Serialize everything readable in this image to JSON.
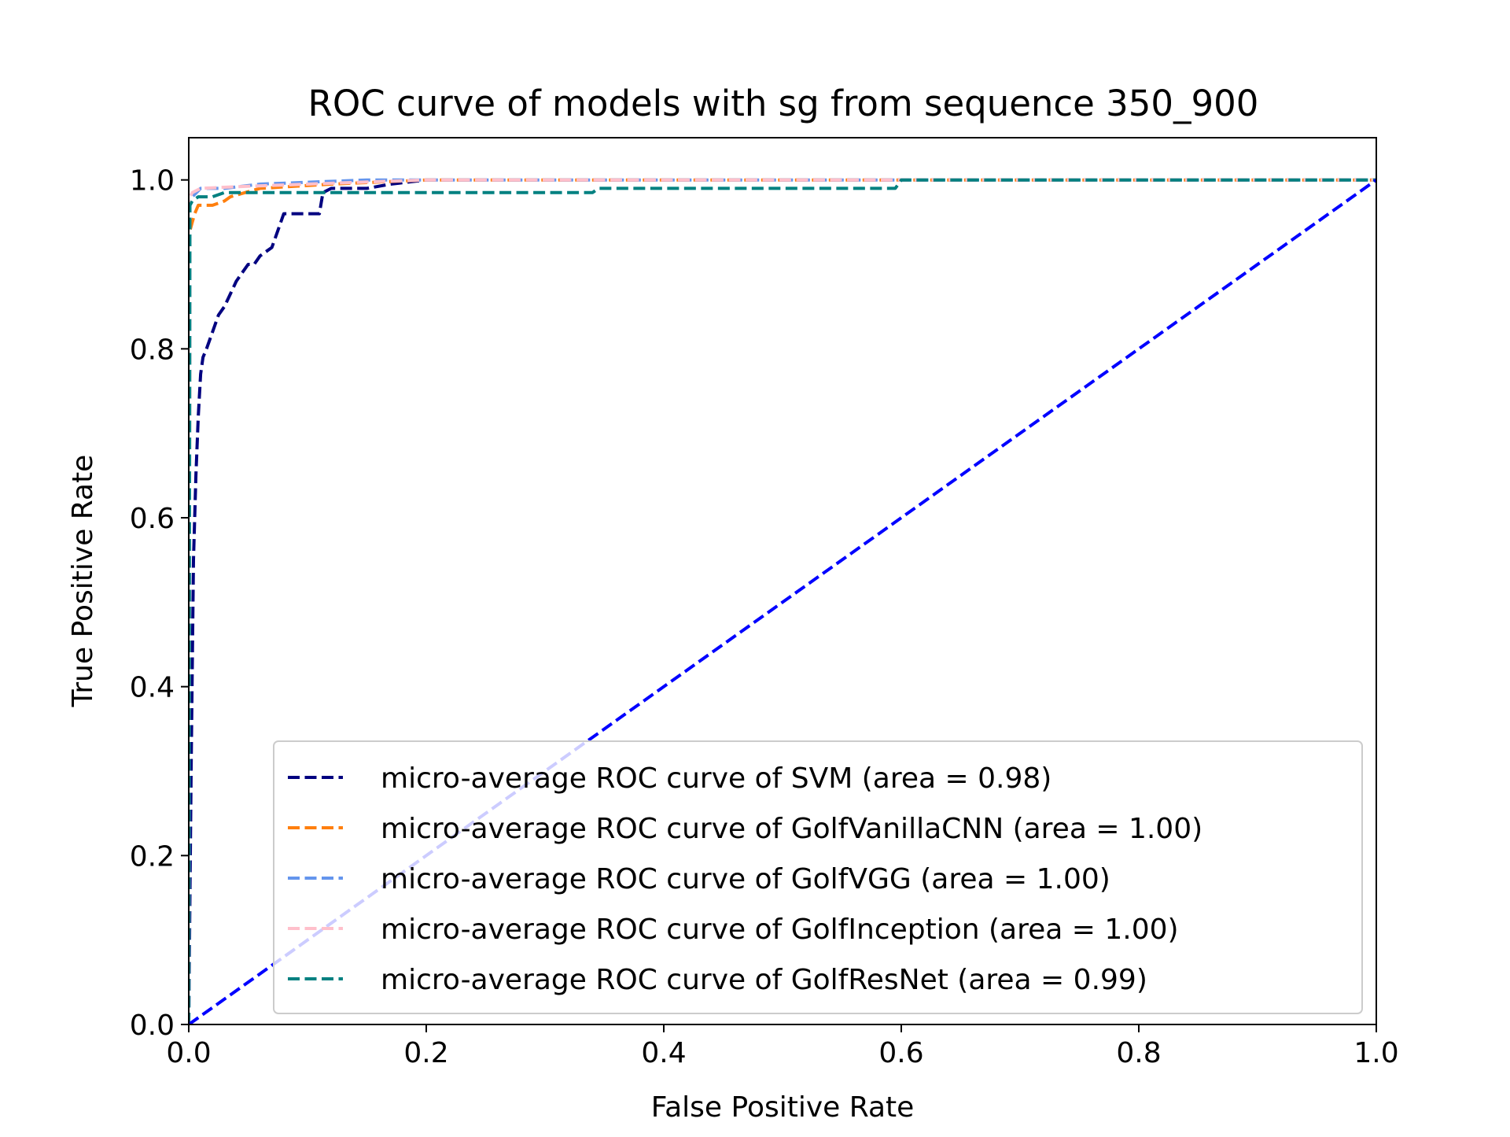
{
  "chart_data": {
    "type": "line",
    "title": "ROC curve of models with sg from sequence 350_900",
    "xlabel": "False Positive Rate",
    "ylabel": "True Positive Rate",
    "xlim": [
      0.0,
      1.0
    ],
    "ylim": [
      0.0,
      1.05
    ],
    "xticks": [
      "0.0",
      "0.2",
      "0.4",
      "0.6",
      "0.8",
      "1.0"
    ],
    "yticks": [
      "0.0",
      "0.2",
      "0.4",
      "0.6",
      "0.8",
      "1.0"
    ],
    "grid": false,
    "legend_position": "lower-right",
    "series": [
      {
        "name": "micro-average ROC curve of SVM (area = 0.98)",
        "color": "#000080",
        "dash": "dashed",
        "x": [
          0.0,
          0.002,
          0.004,
          0.006,
          0.008,
          0.01,
          0.012,
          0.015,
          0.02,
          0.025,
          0.03,
          0.035,
          0.04,
          0.045,
          0.05,
          0.055,
          0.06,
          0.065,
          0.07,
          0.075,
          0.08,
          0.085,
          0.09,
          0.095,
          0.1,
          0.105,
          0.11,
          0.113,
          0.12,
          0.13,
          0.15,
          0.17,
          0.2,
          0.3,
          0.5,
          0.6,
          1.0
        ],
        "y": [
          0.0,
          0.3,
          0.55,
          0.65,
          0.72,
          0.77,
          0.79,
          0.8,
          0.82,
          0.84,
          0.85,
          0.865,
          0.88,
          0.89,
          0.9,
          0.9,
          0.91,
          0.915,
          0.92,
          0.94,
          0.96,
          0.96,
          0.96,
          0.96,
          0.96,
          0.96,
          0.96,
          0.985,
          0.99,
          0.99,
          0.99,
          0.995,
          1.0,
          1.0,
          1.0,
          1.0,
          1.0
        ]
      },
      {
        "name": "micro-average ROC curve of GolfVanillaCNN (area = 1.00)",
        "color": "#ff7f0e",
        "dash": "dashed",
        "x": [
          0.0,
          0.001,
          0.003,
          0.005,
          0.008,
          0.012,
          0.02,
          0.03,
          0.035,
          0.06,
          0.12,
          0.2,
          0.4,
          0.6,
          1.0
        ],
        "y": [
          0.0,
          0.94,
          0.95,
          0.96,
          0.97,
          0.97,
          0.97,
          0.975,
          0.98,
          0.99,
          0.995,
          1.0,
          1.0,
          1.0,
          1.0
        ]
      },
      {
        "name": "micro-average ROC curve of GolfVGG (area = 1.00)",
        "color": "#6495ed",
        "dash": "dashed",
        "x": [
          0.0,
          0.001,
          0.003,
          0.01,
          0.03,
          0.06,
          0.15,
          0.3,
          0.6,
          1.0
        ],
        "y": [
          0.0,
          0.97,
          0.98,
          0.99,
          0.99,
          0.995,
          1.0,
          1.0,
          1.0,
          1.0
        ]
      },
      {
        "name": "micro-average ROC curve of GolfInception (area = 1.00)",
        "color": "#ffc0cb",
        "dash": "dashed",
        "x": [
          0.0,
          0.001,
          0.003,
          0.01,
          0.04,
          0.1,
          0.2,
          0.4,
          0.6,
          1.0
        ],
        "y": [
          0.0,
          0.98,
          0.985,
          0.99,
          0.992,
          0.995,
          1.0,
          1.0,
          1.0,
          1.0
        ]
      },
      {
        "name": "micro-average ROC curve of GolfResNet (area = 0.99)",
        "color": "#008080",
        "dash": "dashed",
        "x": [
          0.0,
          0.001,
          0.003,
          0.008,
          0.02,
          0.03,
          0.1,
          0.2,
          0.34,
          0.345,
          0.5,
          0.595,
          0.6,
          0.8,
          1.0
        ],
        "y": [
          0.0,
          0.97,
          0.975,
          0.98,
          0.98,
          0.985,
          0.985,
          0.985,
          0.985,
          0.99,
          0.99,
          0.99,
          1.0,
          1.0,
          1.0
        ]
      },
      {
        "name": "",
        "color": "#0000ff",
        "dash": "dashed",
        "x": [
          0.0,
          1.0
        ],
        "y": [
          0.0,
          1.0
        ]
      }
    ]
  }
}
